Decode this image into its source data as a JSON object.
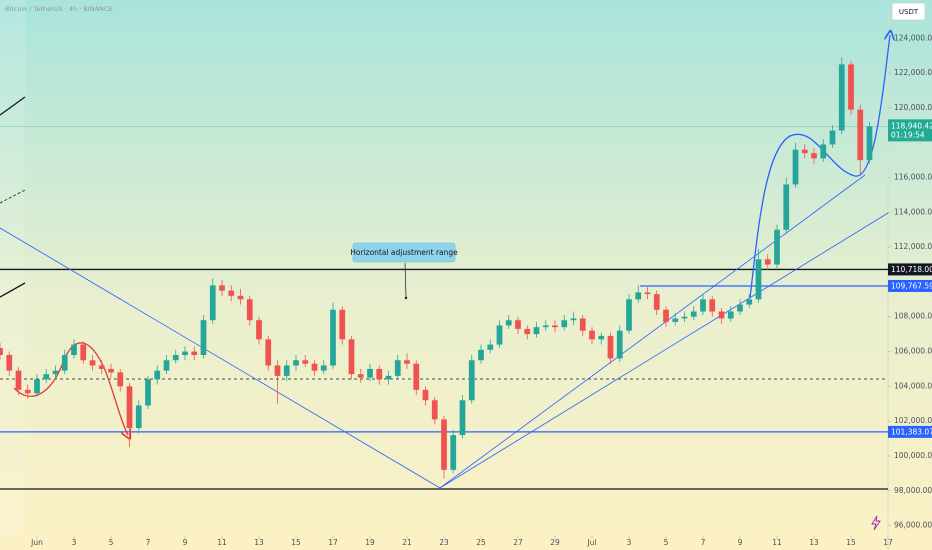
{
  "header": {
    "symbol": "Bitcoin / TetherUS · 4h · BINANCE",
    "currency": "USDT"
  },
  "chart_data": {
    "type": "candlestick",
    "x": [
      -2,
      -1.5,
      -1,
      -0.5,
      0,
      0.5,
      1,
      1.5,
      2,
      2.5,
      3,
      3.5,
      4,
      4.5,
      5,
      5.5,
      6,
      6.5,
      7,
      7.5,
      8,
      8.5,
      9,
      9.5,
      10,
      10.5,
      11,
      11.5,
      12,
      12.5,
      13,
      13.5,
      14,
      14.5,
      15,
      15.5,
      16,
      16.5,
      17,
      17.5,
      18,
      18.5,
      19,
      19.5,
      20,
      20.5,
      21,
      21.5,
      22,
      22.5,
      23,
      23.5,
      24,
      24.5,
      25,
      25.5,
      26,
      26.5,
      27,
      27.5,
      28,
      28.5,
      29,
      29.5,
      30,
      30.5,
      31,
      31.5,
      32,
      32.5,
      33,
      33.5,
      34,
      34.5,
      35,
      35.5,
      36,
      36.5,
      37,
      37.5,
      38,
      38.5,
      39,
      39.5,
      40,
      40.5,
      41,
      41.5,
      42,
      42.5,
      43,
      43.5,
      44,
      44.5,
      45
    ],
    "open": [
      106200,
      105800,
      104900,
      103800,
      103600,
      104400,
      104700,
      104900,
      105800,
      106400,
      105500,
      105200,
      105000,
      104800,
      104000,
      101600,
      102900,
      104400,
      104900,
      105500,
      105800,
      106000,
      105800,
      107800,
      109800,
      109500,
      109200,
      109000,
      107800,
      106700,
      105200,
      104600,
      105200,
      105500,
      105300,
      104900,
      105200,
      108400,
      106700,
      104700,
      104500,
      105000,
      104400,
      104600,
      105500,
      105300,
      103800,
      103200,
      102100,
      99200,
      101200,
      103200,
      105500,
      106100,
      106400,
      107500,
      107800,
      107300,
      107000,
      107400,
      107500,
      107400,
      107800,
      107900,
      107200,
      106700,
      106900,
      105600,
      107200,
      109000,
      109400,
      109300,
      108400,
      107700,
      107900,
      108000,
      108300,
      109000,
      108300,
      107900,
      108300,
      108700,
      109000,
      111300,
      111000,
      113000,
      115600,
      117600,
      117400,
      117100,
      117900,
      118700,
      122500,
      119900,
      117000
    ],
    "high": [
      106500,
      106000,
      105100,
      104100,
      104700,
      105000,
      105200,
      106100,
      106700,
      106600,
      105800,
      105500,
      105300,
      105000,
      104200,
      103200,
      104600,
      105200,
      105800,
      106100,
      106300,
      106300,
      108100,
      110200,
      110100,
      109800,
      109600,
      109200,
      108000,
      106900,
      105500,
      105500,
      105800,
      105800,
      105500,
      105500,
      108800,
      108600,
      106900,
      105000,
      105300,
      105200,
      104900,
      105800,
      105900,
      105500,
      104000,
      103400,
      102300,
      101500,
      103500,
      105800,
      106400,
      106700,
      107800,
      108100,
      108000,
      107500,
      107700,
      107800,
      107800,
      108100,
      108300,
      108100,
      107400,
      107100,
      107100,
      107500,
      109300,
      109800,
      109700,
      109500,
      108600,
      108200,
      108300,
      108600,
      109300,
      109200,
      108500,
      108600,
      109000,
      109300,
      111900,
      111600,
      113300,
      116000,
      118000,
      117900,
      117700,
      118200,
      119000,
      122900,
      122700,
      120200,
      119200
    ],
    "low": [
      105500,
      104600,
      103500,
      103300,
      103400,
      104200,
      104400,
      104700,
      105600,
      105300,
      104900,
      104700,
      104500,
      103700,
      100500,
      101300,
      102700,
      104100,
      104700,
      105300,
      105500,
      105500,
      105600,
      107600,
      109200,
      108900,
      108700,
      107500,
      106400,
      104900,
      103000,
      104300,
      104900,
      105100,
      104600,
      104700,
      105000,
      106400,
      104400,
      104200,
      104300,
      104100,
      104100,
      104400,
      105000,
      103500,
      102900,
      101800,
      98700,
      99000,
      101000,
      103000,
      105300,
      105900,
      106200,
      107300,
      107000,
      106700,
      106800,
      107200,
      107100,
      107200,
      107500,
      106900,
      106400,
      106400,
      105300,
      105400,
      107000,
      108800,
      109000,
      108100,
      107400,
      107500,
      107700,
      107800,
      108100,
      108000,
      107600,
      107700,
      108100,
      108500,
      108800,
      110700,
      110800,
      112800,
      115400,
      117100,
      116800,
      116900,
      117700,
      118500,
      119600,
      116200,
      116800
    ],
    "close": [
      105800,
      104900,
      103800,
      103600,
      104400,
      104700,
      104900,
      105800,
      106400,
      105500,
      105200,
      105000,
      104800,
      104000,
      101600,
      102900,
      104400,
      104900,
      105500,
      105800,
      106000,
      105800,
      107800,
      109800,
      109500,
      109200,
      109000,
      107800,
      106700,
      105200,
      104600,
      105200,
      105500,
      105300,
      104900,
      105200,
      108400,
      106700,
      104700,
      104500,
      105000,
      104400,
      104600,
      105500,
      105300,
      103800,
      103200,
      102100,
      99200,
      101200,
      103200,
      105500,
      106100,
      106400,
      107500,
      107800,
      107300,
      107000,
      107400,
      107500,
      107400,
      107800,
      107900,
      107200,
      106700,
      106900,
      105600,
      107200,
      109000,
      109400,
      109300,
      108400,
      107700,
      107900,
      108000,
      108300,
      109000,
      108300,
      107900,
      108300,
      108700,
      109000,
      111300,
      111000,
      113000,
      115600,
      117600,
      117400,
      117100,
      117900,
      118700,
      122500,
      119900,
      117000,
      118940.42
    ],
    "up_color": "#26a69a",
    "down_color": "#ef5350",
    "xlim": [
      -2,
      46
    ],
    "ylim": [
      95400,
      126200
    ],
    "xticks": [
      {
        "value": 0,
        "label": "Jun"
      },
      {
        "value": 2,
        "label": "3"
      },
      {
        "value": 4,
        "label": "5"
      },
      {
        "value": 6,
        "label": "7"
      },
      {
        "value": 8,
        "label": "9"
      },
      {
        "value": 10,
        "label": "11"
      },
      {
        "value": 12,
        "label": "13"
      },
      {
        "value": 14,
        "label": "15"
      },
      {
        "value": 16,
        "label": "17"
      },
      {
        "value": 18,
        "label": "19"
      },
      {
        "value": 20,
        "label": "21"
      },
      {
        "value": 22,
        "label": "23"
      },
      {
        "value": 24,
        "label": "25"
      },
      {
        "value": 26,
        "label": "27"
      },
      {
        "value": 28,
        "label": "29"
      },
      {
        "value": 30,
        "label": "Jul"
      },
      {
        "value": 32,
        "label": "3"
      },
      {
        "value": 34,
        "label": "5"
      },
      {
        "value": 36,
        "label": "7"
      },
      {
        "value": 38,
        "label": "9"
      },
      {
        "value": 40,
        "label": "11"
      },
      {
        "value": 42,
        "label": "13"
      },
      {
        "value": 44,
        "label": "15"
      },
      {
        "value": 46,
        "label": "17"
      }
    ],
    "yticks": [
      {
        "value": 96000,
        "label": "96,000.00"
      },
      {
        "value": 98000,
        "label": "98,000.00"
      },
      {
        "value": 100000,
        "label": "100,000.00"
      },
      {
        "value": 102000,
        "label": "102,000.00"
      },
      {
        "value": 104000,
        "label": "104,000.00"
      },
      {
        "value": 106000,
        "label": "106,000.00"
      },
      {
        "value": 108000,
        "label": "108,000.00"
      },
      {
        "value": 112000,
        "label": "112,000.00"
      },
      {
        "value": 114000,
        "label": "114,000.00"
      },
      {
        "value": 116000,
        "label": "116,000.00"
      },
      {
        "value": 120000,
        "label": "120,000.00"
      },
      {
        "value": 122000,
        "label": "122,000.00"
      },
      {
        "value": 124000,
        "label": "124,000.00"
      }
    ],
    "levels": [
      {
        "value": 110718,
        "label": "110,718.00",
        "color": "#131722"
      },
      {
        "value": 109767.59,
        "label": "109,767.59",
        "color": "#2962ff",
        "x_start": 32.6
      },
      {
        "value": 101383.07,
        "label": "101,383.07",
        "color": "#2962ff"
      },
      {
        "value": 98100,
        "color": "#131722"
      },
      {
        "value": 104420,
        "color": "#131722",
        "dashed": true
      }
    ],
    "last_price": {
      "value": 118940.42,
      "label": "118,940.42",
      "countdown": "01:19:54",
      "color": "#22ab94"
    },
    "annotation": "Horizontal adjustment range"
  }
}
